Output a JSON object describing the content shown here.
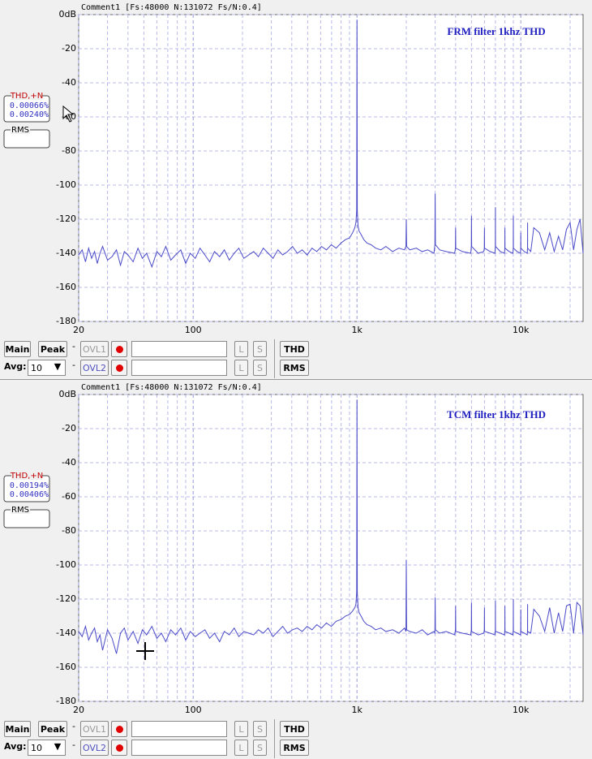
{
  "panels": [
    {
      "header": "Comment1  [Fs:48000 N:131072 Fs/N:0.4]",
      "readout": {
        "title": "THD,+N",
        "values": [
          "0.00066%",
          "0.00240%"
        ],
        "rms": "RMS"
      },
      "controls": {
        "main": "Main",
        "peak": "Peak",
        "dash": "-",
        "ovl1": "OVL1",
        "l": "L",
        "s": "S",
        "thd": "THD",
        "avg": "Avg:",
        "avg_value": "10",
        "ovl2": "OVL2",
        "rms": "RMS"
      }
    },
    {
      "header": "Comment1  [Fs:48000 N:131072 Fs/N:0.4]",
      "readout": {
        "title": "THD,+N",
        "values": [
          "0.00194%",
          "0.00406%"
        ],
        "rms": "RMS"
      },
      "controls": {
        "main": "Main",
        "peak": "Peak",
        "dash": "-",
        "ovl1": "OVL1",
        "l": "L",
        "s": "S",
        "thd": "THD",
        "avg": "Avg:",
        "avg_value": "10",
        "ovl2": "OVL2",
        "rms": "RMS"
      }
    }
  ],
  "chart_data": [
    {
      "type": "line",
      "annotation": "FRM filter 1khz THD",
      "color": "#4a4ac8",
      "log_x": true,
      "grid": true,
      "xlim": [
        20,
        24000
      ],
      "ylim": [
        -180,
        0
      ],
      "xticks": [
        20,
        100,
        {
          "value": 1000,
          "label": "1k"
        },
        {
          "value": 10000,
          "label": "10k"
        }
      ],
      "x_minor_ticks": [
        30,
        40,
        50,
        60,
        70,
        80,
        90,
        200,
        300,
        400,
        500,
        600,
        700,
        800,
        900,
        2000,
        3000,
        4000,
        5000,
        6000,
        7000,
        8000,
        9000,
        20000
      ],
      "yticks": [
        {
          "value": 0,
          "label": "0dB"
        },
        -20,
        -40,
        -60,
        -80,
        -100,
        -120,
        -140,
        -160,
        -180
      ],
      "x": [
        20,
        21,
        22,
        23,
        24,
        25,
        26,
        27,
        28,
        30,
        32,
        34,
        36,
        38,
        40,
        43,
        46,
        49,
        52,
        56,
        60,
        64,
        68,
        73,
        78,
        84,
        90,
        96,
        103,
        110,
        118,
        126,
        135,
        145,
        155,
        166,
        178,
        190,
        204,
        218,
        234,
        250,
        268,
        287,
        307,
        329,
        352,
        377,
        404,
        432,
        463,
        496,
        531,
        568,
        608,
        651,
        697,
        746,
        799,
        850,
        900,
        940,
        970,
        985,
        995,
        1000,
        1005,
        1015,
        1030,
        1060,
        1100,
        1150,
        1220,
        1300,
        1400,
        1500,
        1650,
        1800,
        1950,
        1990,
        2000,
        2010,
        2100,
        2300,
        2500,
        2700,
        2950,
        2990,
        3000,
        3010,
        3200,
        3500,
        3950,
        3990,
        4000,
        4010,
        4400,
        4950,
        4990,
        5000,
        5010,
        5500,
        5950,
        5990,
        6000,
        6010,
        6500,
        6950,
        6990,
        7000,
        7010,
        7500,
        7950,
        7990,
        8000,
        8010,
        8500,
        8950,
        8990,
        9000,
        9010,
        9500,
        9950,
        9990,
        10000,
        10010,
        10500,
        10950,
        10990,
        11000,
        11010,
        11500,
        12000,
        13000,
        14000,
        15000,
        16000,
        17000,
        18000,
        19000,
        20000,
        21000,
        22000,
        23000,
        24000
      ],
      "values": [
        -141,
        -138,
        -145,
        -137,
        -143,
        -139,
        -146,
        -140,
        -136,
        -144,
        -142,
        -138,
        -147,
        -139,
        -141,
        -145,
        -137,
        -143,
        -140,
        -148,
        -139,
        -142,
        -136,
        -144,
        -141,
        -138,
        -146,
        -140,
        -143,
        -137,
        -141,
        -145,
        -139,
        -142,
        -138,
        -144,
        -140,
        -137,
        -143,
        -141,
        -139,
        -142,
        -137,
        -140,
        -143,
        -138,
        -141,
        -139,
        -136,
        -140,
        -138,
        -141,
        -137,
        -139,
        -136,
        -138,
        -135,
        -137,
        -134,
        -132,
        -131,
        -128,
        -125,
        -122,
        -115,
        -3,
        -115,
        -124,
        -127,
        -129,
        -132,
        -134,
        -135,
        -137,
        -138,
        -136,
        -139,
        -137,
        -138,
        -136,
        -120,
        -136,
        -138,
        -137,
        -139,
        -138,
        -140,
        -135,
        -105,
        -135,
        -138,
        -139,
        -140,
        -137,
        -125,
        -137,
        -139,
        -140,
        -136,
        -118,
        -136,
        -140,
        -139,
        -137,
        -125,
        -137,
        -139,
        -140,
        -136,
        -113,
        -136,
        -139,
        -140,
        -137,
        -125,
        -137,
        -139,
        -140,
        -137,
        -118,
        -137,
        -139,
        -140,
        -137,
        -128,
        -137,
        -139,
        -140,
        -137,
        -122,
        -137,
        -139,
        -125,
        -128,
        -138,
        -128,
        -139,
        -130,
        -138,
        -126,
        -122,
        -138,
        -126,
        -120,
        -140
      ]
    },
    {
      "type": "line",
      "annotation": "TCM filter 1khz THD",
      "color": "#4a4ac8",
      "log_x": true,
      "grid": true,
      "xlim": [
        20,
        24000
      ],
      "ylim": [
        -180,
        0
      ],
      "xticks": [
        20,
        100,
        {
          "value": 1000,
          "label": "1k"
        },
        {
          "value": 10000,
          "label": "10k"
        }
      ],
      "x_minor_ticks": [
        30,
        40,
        50,
        60,
        70,
        80,
        90,
        200,
        300,
        400,
        500,
        600,
        700,
        800,
        900,
        2000,
        3000,
        4000,
        5000,
        6000,
        7000,
        8000,
        9000,
        20000
      ],
      "yticks": [
        {
          "value": 0,
          "label": "0dB"
        },
        -20,
        -40,
        -60,
        -80,
        -100,
        -120,
        -140,
        -160,
        -180
      ],
      "x": [
        20,
        21,
        22,
        23,
        24,
        25,
        26,
        27,
        28,
        30,
        32,
        34,
        36,
        38,
        40,
        43,
        46,
        49,
        52,
        56,
        60,
        64,
        68,
        73,
        78,
        84,
        90,
        96,
        103,
        110,
        118,
        126,
        135,
        145,
        155,
        166,
        178,
        190,
        204,
        218,
        234,
        250,
        268,
        287,
        307,
        329,
        352,
        377,
        404,
        432,
        463,
        496,
        531,
        568,
        608,
        651,
        697,
        746,
        799,
        850,
        900,
        940,
        970,
        985,
        995,
        1000,
        1005,
        1015,
        1030,
        1060,
        1100,
        1150,
        1220,
        1300,
        1400,
        1500,
        1650,
        1800,
        1950,
        1990,
        2000,
        2010,
        2100,
        2300,
        2500,
        2700,
        2950,
        2990,
        3000,
        3010,
        3200,
        3500,
        3950,
        3990,
        4000,
        4010,
        4400,
        4950,
        4990,
        5000,
        5010,
        5500,
        5950,
        5990,
        6000,
        6010,
        6500,
        6950,
        6990,
        7000,
        7010,
        7500,
        7950,
        7990,
        8000,
        8010,
        8500,
        8950,
        8990,
        9000,
        9010,
        9500,
        9950,
        9990,
        10000,
        10010,
        10500,
        10950,
        10990,
        11000,
        11010,
        11500,
        12000,
        13000,
        14000,
        15000,
        16000,
        17000,
        18000,
        19000,
        20000,
        21000,
        22000,
        23000,
        24000
      ],
      "values": [
        -139,
        -142,
        -136,
        -144,
        -140,
        -137,
        -145,
        -141,
        -150,
        -138,
        -143,
        -152,
        -140,
        -137,
        -144,
        -139,
        -146,
        -138,
        -141,
        -136,
        -143,
        -140,
        -145,
        -138,
        -141,
        -137,
        -144,
        -139,
        -142,
        -140,
        -138,
        -143,
        -140,
        -145,
        -139,
        -141,
        -137,
        -142,
        -139,
        -140,
        -141,
        -138,
        -140,
        -137,
        -142,
        -139,
        -136,
        -140,
        -138,
        -137,
        -139,
        -136,
        -138,
        -135,
        -137,
        -134,
        -136,
        -133,
        -132,
        -130,
        -129,
        -127,
        -125,
        -123,
        -116,
        -3,
        -116,
        -125,
        -128,
        -130,
        -133,
        -135,
        -136,
        -138,
        -137,
        -139,
        -138,
        -140,
        -137,
        -139,
        -97,
        -138,
        -139,
        -140,
        -138,
        -141,
        -139,
        -140,
        -119,
        -138,
        -140,
        -139,
        -141,
        -138,
        -124,
        -139,
        -140,
        -141,
        -138,
        -122,
        -139,
        -141,
        -140,
        -138,
        -125,
        -139,
        -140,
        -141,
        -138,
        -121,
        -139,
        -140,
        -141,
        -138,
        -124,
        -139,
        -140,
        -141,
        -138,
        -120,
        -139,
        -140,
        -141,
        -138,
        -126,
        -139,
        -140,
        -141,
        -138,
        -123,
        -139,
        -140,
        -126,
        -130,
        -139,
        -125,
        -140,
        -128,
        -139,
        -124,
        -123,
        -140,
        -122,
        -124,
        -141
      ]
    }
  ]
}
